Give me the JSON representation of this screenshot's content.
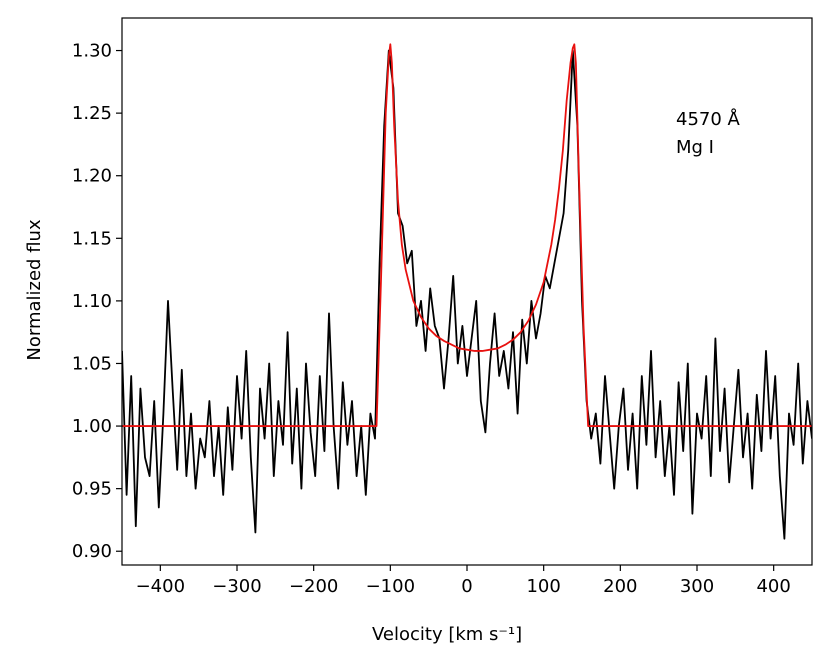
{
  "chart_data": {
    "type": "line",
    "xlabel": "Velocity [km s⁻¹]",
    "ylabel": "Normalized flux",
    "annotations": [
      "4570 Å",
      "Mg I"
    ],
    "xlim": [
      -450,
      450
    ],
    "ylim": [
      0.889,
      1.326
    ],
    "xticks": [
      {
        "value": -400,
        "label": "−400"
      },
      {
        "value": -300,
        "label": "−300"
      },
      {
        "value": -200,
        "label": "−200"
      },
      {
        "value": -100,
        "label": "−100"
      },
      0,
      100,
      200,
      300,
      400
    ],
    "yticks": [
      {
        "value": 0.9,
        "label": "0.90"
      },
      0.95,
      {
        "value": 1.0,
        "label": "1.00"
      },
      1.05,
      {
        "value": 1.1,
        "label": "1.10"
      },
      1.15,
      {
        "value": 1.2,
        "label": "1.20"
      },
      1.25,
      {
        "value": 1.3,
        "label": "1.30"
      }
    ],
    "series": [
      {
        "color": "#000000",
        "x": [
          -450,
          -444,
          -438,
          -432,
          -426,
          -420,
          -414,
          -408,
          -402,
          -396,
          -390,
          -384,
          -378,
          -372,
          -366,
          -360,
          -354,
          -348,
          -342,
          -336,
          -330,
          -324,
          -318,
          -312,
          -306,
          -300,
          -294,
          -288,
          -282,
          -276,
          -270,
          -264,
          -258,
          -252,
          -246,
          -240,
          -234,
          -228,
          -222,
          -216,
          -210,
          -204,
          -198,
          -192,
          -186,
          -180,
          -174,
          -168,
          -162,
          -156,
          -150,
          -144,
          -138,
          -132,
          -126,
          -120,
          -114,
          -108,
          -102,
          -96,
          -90,
          -84,
          -78,
          -72,
          -66,
          -60,
          -54,
          -48,
          -42,
          -36,
          -30,
          -24,
          -18,
          -12,
          -6,
          0,
          6,
          12,
          18,
          24,
          30,
          36,
          42,
          48,
          54,
          60,
          66,
          72,
          78,
          84,
          90,
          96,
          102,
          108,
          114,
          120,
          126,
          132,
          138,
          144,
          150,
          156,
          162,
          168,
          174,
          180,
          186,
          192,
          198,
          204,
          210,
          216,
          222,
          228,
          234,
          240,
          246,
          252,
          258,
          264,
          270,
          276,
          282,
          288,
          294,
          300,
          306,
          312,
          318,
          324,
          330,
          336,
          342,
          348,
          354,
          360,
          366,
          372,
          378,
          384,
          390,
          396,
          402,
          408,
          414,
          420,
          426,
          432,
          438,
          444,
          450
        ],
        "values": [
          1.06,
          0.945,
          1.04,
          0.92,
          1.03,
          0.975,
          0.96,
          1.02,
          0.935,
          1.01,
          1.1,
          1.03,
          0.965,
          1.045,
          0.96,
          1.01,
          0.95,
          0.99,
          0.975,
          1.02,
          0.96,
          1.0,
          0.945,
          1.015,
          0.965,
          1.04,
          0.99,
          1.06,
          0.975,
          0.915,
          1.03,
          0.99,
          1.05,
          0.96,
          1.02,
          0.985,
          1.075,
          0.97,
          1.03,
          0.95,
          1.05,
          0.995,
          0.96,
          1.04,
          0.98,
          1.09,
          1.0,
          0.95,
          1.035,
          0.985,
          1.02,
          0.96,
          1.0,
          0.945,
          1.01,
          0.99,
          1.13,
          1.24,
          1.3,
          1.27,
          1.17,
          1.16,
          1.13,
          1.14,
          1.08,
          1.1,
          1.06,
          1.11,
          1.08,
          1.07,
          1.03,
          1.07,
          1.12,
          1.05,
          1.08,
          1.04,
          1.07,
          1.1,
          1.02,
          0.995,
          1.05,
          1.09,
          1.04,
          1.06,
          1.03,
          1.075,
          1.01,
          1.085,
          1.05,
          1.1,
          1.07,
          1.09,
          1.12,
          1.11,
          1.13,
          1.15,
          1.17,
          1.22,
          1.3,
          1.24,
          1.1,
          1.02,
          0.99,
          1.01,
          0.97,
          1.04,
          0.995,
          0.95,
          1.0,
          1.03,
          0.965,
          1.01,
          0.95,
          1.04,
          0.985,
          1.06,
          0.975,
          1.02,
          0.96,
          1.0,
          0.945,
          1.035,
          0.98,
          1.05,
          0.93,
          1.01,
          0.99,
          1.04,
          0.96,
          1.07,
          0.98,
          1.03,
          0.955,
          1.0,
          1.045,
          0.975,
          1.01,
          0.95,
          1.025,
          0.98,
          1.06,
          0.99,
          1.04,
          0.96,
          0.91,
          1.01,
          0.985,
          1.05,
          0.97,
          1.02,
          0.99
        ]
      },
      {
        "color": "#e8110f",
        "x": [
          -450,
          -118,
          -112,
          -106,
          -102,
          -100,
          -98,
          -95,
          -90,
          -85,
          -80,
          -70,
          -60,
          -50,
          -40,
          -30,
          -20,
          -10,
          0,
          10,
          20,
          30,
          40,
          50,
          60,
          70,
          80,
          90,
          100,
          110,
          115,
          120,
          125,
          130,
          135,
          138,
          140,
          142,
          146,
          152,
          158,
          450
        ],
        "values": [
          1.0,
          1.0,
          1.12,
          1.25,
          1.295,
          1.305,
          1.29,
          1.24,
          1.18,
          1.145,
          1.125,
          1.1,
          1.087,
          1.078,
          1.072,
          1.068,
          1.065,
          1.062,
          1.061,
          1.06,
          1.06,
          1.061,
          1.062,
          1.065,
          1.069,
          1.075,
          1.084,
          1.097,
          1.115,
          1.145,
          1.165,
          1.19,
          1.22,
          1.26,
          1.29,
          1.302,
          1.305,
          1.29,
          1.2,
          1.08,
          1.0,
          1.0
        ]
      }
    ]
  }
}
